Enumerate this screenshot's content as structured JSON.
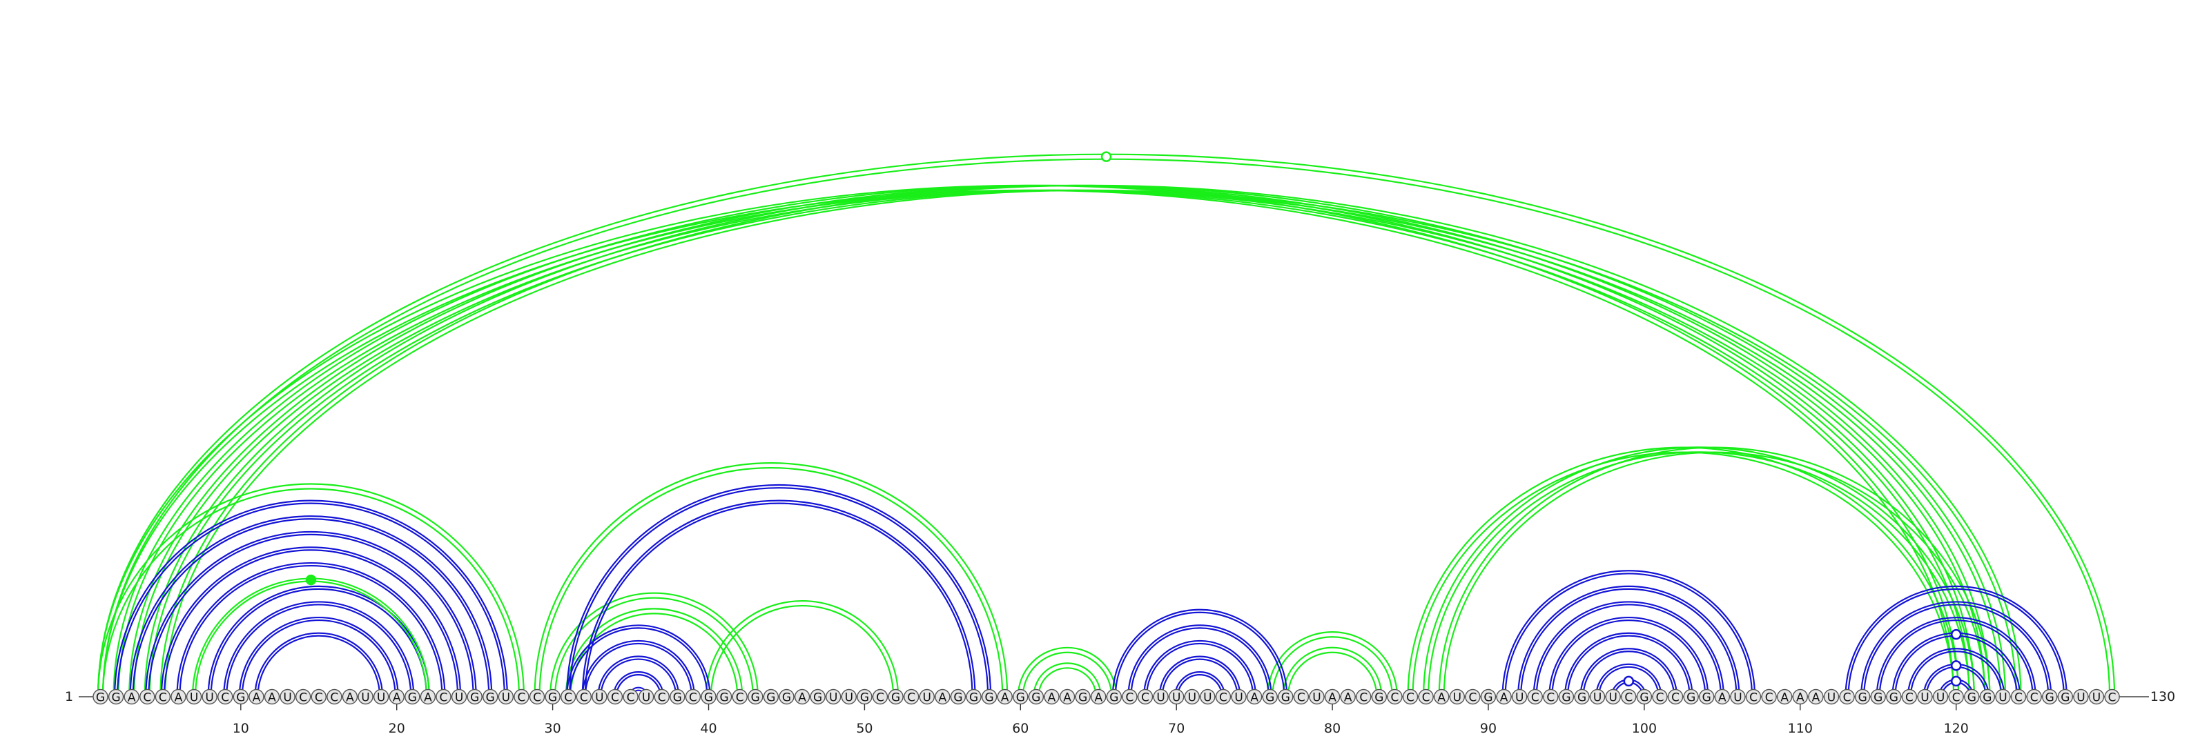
{
  "sequence": "GGACCAUUCGAAUCCCAUUAGACUGGUCCGCCUCCUCGCGGCGGGAGUUGCGCUAGGGAGGAAGAGCCUUUUCUAGGCUAACGCCCAUCGAUCCGGUUCGCCGGAUCCAAAUCGGGCUUCGGUCCGGUUC",
  "start_label": "1",
  "end_label": "130",
  "ticks": [
    "10",
    "20",
    "30",
    "40",
    "50",
    "60",
    "70",
    "80",
    "90",
    "100",
    "110",
    "120"
  ],
  "colors": {
    "green": "#19ee19",
    "blue": "#1414d6",
    "nucleotide_fill": "#e6e6e6",
    "nucleotide_stroke": "#555555"
  },
  "bundles": [
    {
      "color": "green",
      "pairs": [
        [
          1,
          120
        ],
        [
          2,
          121
        ],
        [
          3,
          122
        ],
        [
          4,
          123
        ],
        [
          5,
          124
        ]
      ],
      "lines": [
        -3.5,
        3.5
      ]
    },
    {
      "color": "green",
      "pairs": [
        [
          1,
          130
        ]
      ],
      "lines": [
        -3.5,
        3.5
      ],
      "marker": "open"
    },
    {
      "color": "green",
      "pairs": [
        [
          1,
          28
        ],
        [
          29,
          59
        ],
        [
          30,
          43
        ],
        [
          31,
          42
        ],
        [
          40,
          52
        ],
        [
          60,
          66
        ],
        [
          61,
          65
        ],
        [
          76,
          84
        ],
        [
          77,
          83
        ],
        [
          85,
          120
        ],
        [
          86,
          121
        ],
        [
          87,
          122
        ]
      ],
      "lines": [
        -3.5,
        3.5
      ]
    },
    {
      "color": "blue",
      "pairs": [
        [
          2,
          27
        ],
        [
          3,
          26
        ],
        [
          4,
          25
        ],
        [
          5,
          24
        ],
        [
          6,
          23
        ],
        [
          8,
          22
        ],
        [
          9,
          21
        ],
        [
          10,
          20
        ],
        [
          11,
          19
        ],
        [
          31,
          40
        ],
        [
          32,
          39
        ],
        [
          33,
          38
        ],
        [
          34,
          37
        ],
        [
          35,
          36
        ],
        [
          31,
          58
        ],
        [
          32,
          57
        ],
        [
          66,
          77
        ],
        [
          67,
          76
        ],
        [
          68,
          75
        ],
        [
          69,
          74
        ],
        [
          70,
          73
        ]
      ],
      "lines": [
        -2,
        2
      ]
    },
    {
      "color": "green",
      "pairs": [
        [
          7,
          22
        ]
      ],
      "lines": [
        -2,
        2
      ],
      "marker": "filled"
    },
    {
      "color": "blue",
      "pairs": [
        [
          91,
          107
        ],
        [
          92,
          106
        ],
        [
          93,
          105
        ],
        [
          94,
          104
        ],
        [
          95,
          103
        ],
        [
          96,
          102
        ],
        [
          97,
          101
        ],
        [
          98,
          100
        ]
      ],
      "lines": [
        -2,
        2
      ],
      "marker_pair": [
        98,
        100
      ],
      "marker": "open"
    },
    {
      "color": "blue",
      "pairs": [
        [
          113,
          127
        ],
        [
          114,
          126
        ],
        [
          115,
          125
        ],
        [
          116,
          124
        ],
        [
          117,
          123
        ],
        [
          118,
          122
        ],
        [
          119,
          121
        ]
      ],
      "lines": [
        -2,
        2
      ],
      "marker_pairs": [
        [
          116,
          124
        ],
        [
          118,
          122
        ],
        [
          119,
          121
        ]
      ],
      "marker": "open"
    }
  ]
}
